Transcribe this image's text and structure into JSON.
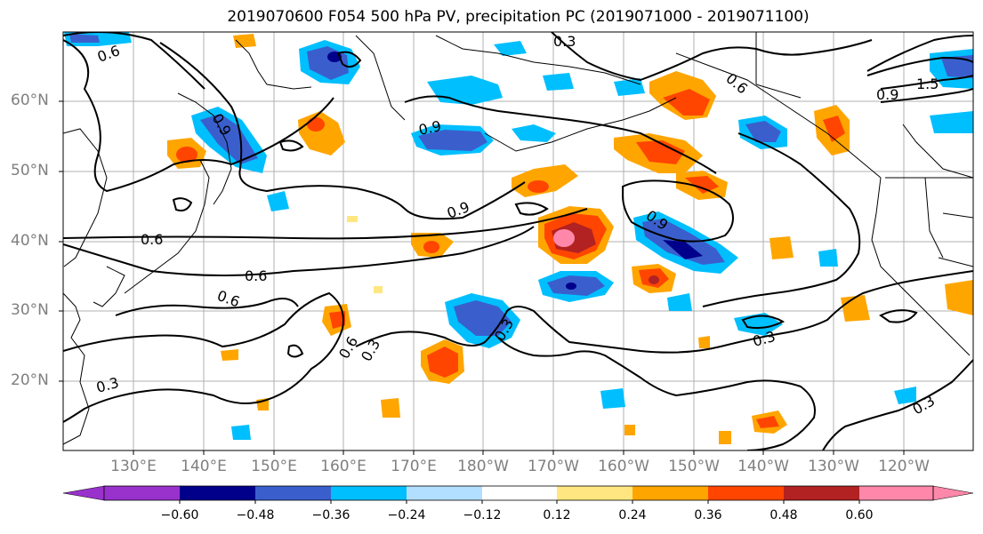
{
  "title": "2019070600 F054 500 hPa PV, precipitation PC (2019071000 - 2019071100)",
  "lat_labels": [
    "60°N",
    "50°N",
    "40°N",
    "30°N",
    "20°N"
  ],
  "lon_labels": [
    "130°E",
    "140°E",
    "150°E",
    "160°E",
    "170°E",
    "180°W",
    "170°W",
    "160°W",
    "150°W",
    "140°W",
    "130°W",
    "120°W"
  ],
  "contour_labels": [
    "0.6",
    "0.3",
    "0.9",
    "0.6",
    "1.5",
    "0.9",
    "0.9",
    "0.9",
    "0.9",
    "0.6",
    "0.6",
    "0.6",
    "0.3",
    "0.6",
    "0.3",
    "0.3",
    "0.3",
    "0.3"
  ],
  "colorbar": {
    "ticks": [
      "−0.60",
      "−0.48",
      "−0.36",
      "−0.24",
      "−0.12",
      "0.12",
      "0.24",
      "0.36",
      "0.48",
      "0.60"
    ],
    "colors": [
      "#9932cc",
      "#00008b",
      "#3a5fcd",
      "#00bfff",
      "#b2dfff",
      "#ffffff",
      "#ffe680",
      "#ffa500",
      "#ff4500",
      "#b22222",
      "#ff88aa"
    ]
  }
}
